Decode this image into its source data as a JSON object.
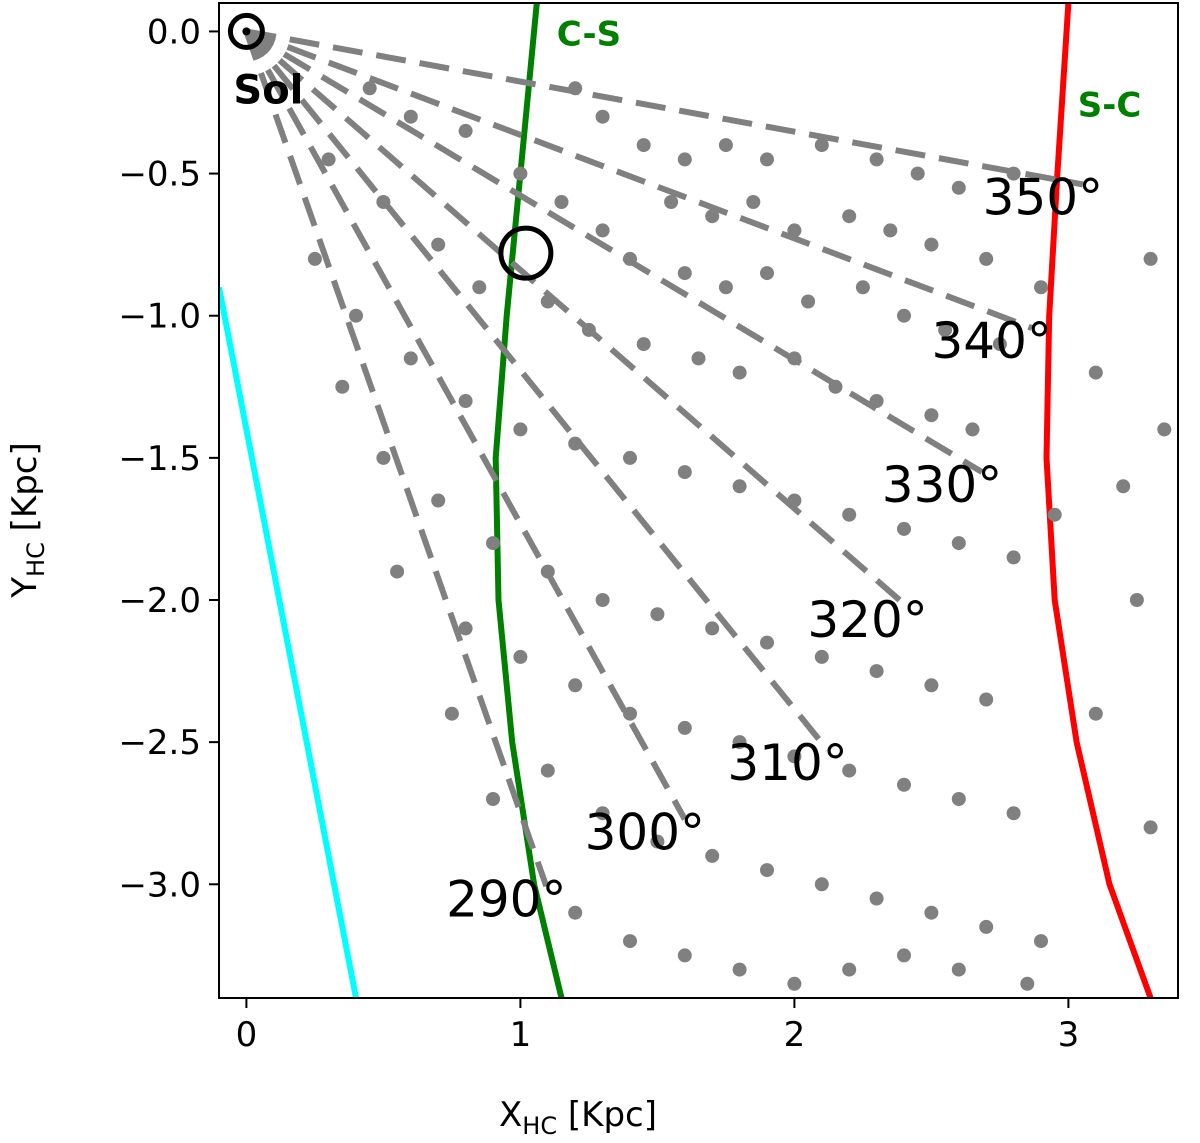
{
  "chart_data": {
    "type": "scatter",
    "title": "",
    "xlabel": {
      "main": "X",
      "sub": "HC",
      "unit": " [Kpc]"
    },
    "ylabel": {
      "main": "Y",
      "sub": "HC",
      "unit": " [Kpc]"
    },
    "xlim": [
      -0.1,
      3.4
    ],
    "ylim": [
      -3.4,
      0.1
    ],
    "xticks": [
      0,
      1,
      2,
      3
    ],
    "xtick_labels": [
      "0",
      "1",
      "2",
      "3"
    ],
    "yticks": [
      0.0,
      -0.5,
      -1.0,
      -1.5,
      -2.0,
      -2.5,
      -3.0
    ],
    "ytick_labels": [
      "0.0",
      "−0.5",
      "−1.0",
      "−1.5",
      "−2.0",
      "−2.5",
      "−3.0"
    ],
    "grid": false,
    "sun": {
      "x": 0.0,
      "y": 0.0,
      "label": "Sol"
    },
    "marker": {
      "x": 1.02,
      "y": -0.78
    },
    "sightlines": [
      {
        "longitude_deg": 290,
        "length": 3.2,
        "label": "290°"
      },
      {
        "longitude_deg": 300,
        "length": 3.2,
        "label": "300°"
      },
      {
        "longitude_deg": 310,
        "length": 3.3,
        "label": "310°"
      },
      {
        "longitude_deg": 320,
        "length": 3.15,
        "label": "320°"
      },
      {
        "longitude_deg": 330,
        "length": 3.1,
        "label": "330°"
      },
      {
        "longitude_deg": 340,
        "length": 3.05,
        "label": "340°"
      },
      {
        "longitude_deg": 350,
        "length": 3.1,
        "label": "350°"
      }
    ],
    "arms": [
      {
        "label": "",
        "color": "#00ffff",
        "points": [
          [
            -0.1,
            -0.9
          ],
          [
            0.0,
            -1.4
          ],
          [
            0.1,
            -1.9
          ],
          [
            0.2,
            -2.4
          ],
          [
            0.3,
            -2.9
          ],
          [
            0.4,
            -3.4
          ]
        ]
      },
      {
        "label": "C-S",
        "color": "#008000",
        "points": [
          [
            1.06,
            0.1
          ],
          [
            1.0,
            -0.5
          ],
          [
            0.95,
            -1.0
          ],
          [
            0.91,
            -1.5
          ],
          [
            0.92,
            -2.0
          ],
          [
            0.97,
            -2.5
          ],
          [
            1.05,
            -3.0
          ],
          [
            1.15,
            -3.4
          ]
        ]
      },
      {
        "label": "S-C",
        "color": "#ff0000",
        "points": [
          [
            3.0,
            0.1
          ],
          [
            2.96,
            -0.5
          ],
          [
            2.93,
            -1.0
          ],
          [
            2.92,
            -1.5
          ],
          [
            2.95,
            -2.0
          ],
          [
            3.03,
            -2.5
          ],
          [
            3.15,
            -3.0
          ],
          [
            3.3,
            -3.4
          ]
        ]
      }
    ],
    "scatter_color": "#808080",
    "scatter_points": [
      [
        0.45,
        -0.2
      ],
      [
        0.6,
        -0.3
      ],
      [
        0.8,
        -0.35
      ],
      [
        1.2,
        -0.2
      ],
      [
        1.3,
        -0.3
      ],
      [
        1.45,
        -0.4
      ],
      [
        1.6,
        -0.45
      ],
      [
        1.75,
        -0.4
      ],
      [
        1.9,
        -0.45
      ],
      [
        2.1,
        -0.4
      ],
      [
        2.3,
        -0.45
      ],
      [
        2.45,
        -0.5
      ],
      [
        2.6,
        -0.55
      ],
      [
        2.8,
        -0.5
      ],
      [
        1.55,
        -0.6
      ],
      [
        1.7,
        -0.65
      ],
      [
        1.85,
        -0.6
      ],
      [
        2.0,
        -0.7
      ],
      [
        2.2,
        -0.65
      ],
      [
        2.35,
        -0.7
      ],
      [
        2.5,
        -0.75
      ],
      [
        2.7,
        -0.8
      ],
      [
        1.3,
        -0.7
      ],
      [
        1.4,
        -0.8
      ],
      [
        1.6,
        -0.85
      ],
      [
        1.75,
        -0.9
      ],
      [
        1.9,
        -0.85
      ],
      [
        2.05,
        -0.95
      ],
      [
        2.25,
        -0.9
      ],
      [
        2.4,
        -1.0
      ],
      [
        2.55,
        -1.05
      ],
      [
        2.75,
        -1.1
      ],
      [
        1.1,
        -0.95
      ],
      [
        1.25,
        -1.05
      ],
      [
        1.45,
        -1.1
      ],
      [
        1.65,
        -1.15
      ],
      [
        1.8,
        -1.2
      ],
      [
        2.0,
        -1.15
      ],
      [
        2.15,
        -1.25
      ],
      [
        2.3,
        -1.3
      ],
      [
        2.5,
        -1.35
      ],
      [
        2.65,
        -1.4
      ],
      [
        0.3,
        -0.45
      ],
      [
        0.5,
        -0.6
      ],
      [
        0.7,
        -0.75
      ],
      [
        0.85,
        -0.9
      ],
      [
        0.4,
        -1.0
      ],
      [
        0.6,
        -1.15
      ],
      [
        0.8,
        -1.3
      ],
      [
        1.0,
        -1.4
      ],
      [
        1.2,
        -1.45
      ],
      [
        1.4,
        -1.5
      ],
      [
        1.6,
        -1.55
      ],
      [
        1.8,
        -1.6
      ],
      [
        2.0,
        -1.65
      ],
      [
        2.2,
        -1.7
      ],
      [
        2.4,
        -1.75
      ],
      [
        2.6,
        -1.8
      ],
      [
        2.8,
        -1.85
      ],
      [
        3.1,
        -1.2
      ],
      [
        3.2,
        -1.6
      ],
      [
        3.25,
        -2.0
      ],
      [
        3.1,
        -2.4
      ],
      [
        0.5,
        -1.5
      ],
      [
        0.7,
        -1.65
      ],
      [
        0.9,
        -1.8
      ],
      [
        1.1,
        -1.9
      ],
      [
        1.3,
        -2.0
      ],
      [
        1.5,
        -2.05
      ],
      [
        1.7,
        -2.1
      ],
      [
        1.9,
        -2.15
      ],
      [
        2.1,
        -2.2
      ],
      [
        2.3,
        -2.25
      ],
      [
        2.5,
        -2.3
      ],
      [
        2.7,
        -2.35
      ],
      [
        0.8,
        -2.1
      ],
      [
        1.0,
        -2.2
      ],
      [
        1.2,
        -2.3
      ],
      [
        1.4,
        -2.4
      ],
      [
        1.6,
        -2.45
      ],
      [
        1.8,
        -2.5
      ],
      [
        2.0,
        -2.55
      ],
      [
        2.2,
        -2.6
      ],
      [
        2.4,
        -2.65
      ],
      [
        2.6,
        -2.7
      ],
      [
        2.8,
        -2.75
      ],
      [
        1.1,
        -2.6
      ],
      [
        1.3,
        -2.75
      ],
      [
        1.5,
        -2.85
      ],
      [
        1.7,
        -2.9
      ],
      [
        1.9,
        -2.95
      ],
      [
        2.1,
        -3.0
      ],
      [
        2.3,
        -3.05
      ],
      [
        2.5,
        -3.1
      ],
      [
        2.7,
        -3.15
      ],
      [
        2.9,
        -3.2
      ],
      [
        1.2,
        -3.1
      ],
      [
        1.4,
        -3.2
      ],
      [
        1.6,
        -3.25
      ],
      [
        1.8,
        -3.3
      ],
      [
        2.0,
        -3.35
      ],
      [
        2.2,
        -3.3
      ],
      [
        2.4,
        -3.25
      ],
      [
        2.6,
        -3.3
      ],
      [
        2.85,
        -3.35
      ],
      [
        3.3,
        -0.8
      ],
      [
        3.35,
        -1.4
      ],
      [
        3.3,
        -2.8
      ],
      [
        0.25,
        -0.8
      ],
      [
        0.35,
        -1.25
      ],
      [
        0.55,
        -1.9
      ],
      [
        0.75,
        -2.4
      ],
      [
        0.9,
        -2.7
      ],
      [
        1.0,
        -0.5
      ],
      [
        1.15,
        -0.6
      ],
      [
        2.9,
        -0.9
      ],
      [
        2.95,
        -1.7
      ]
    ]
  }
}
